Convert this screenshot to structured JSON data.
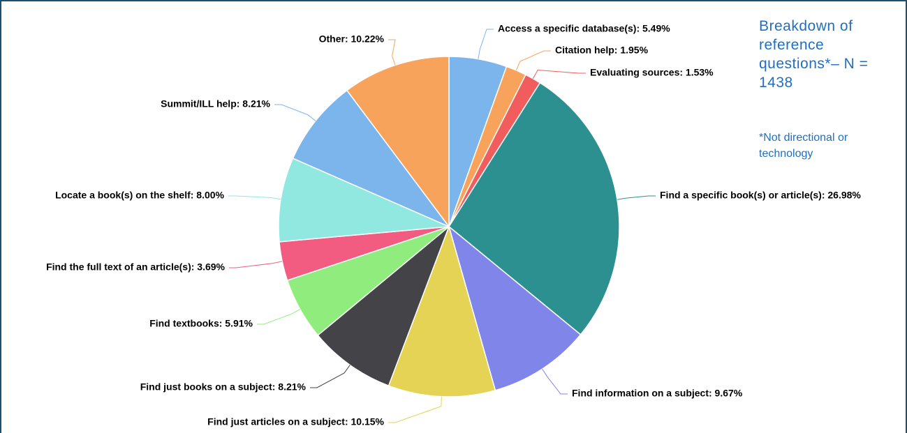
{
  "chart_data": {
    "type": "pie",
    "title": "Breakdown of reference questions*– N = 1438",
    "subtitle": "*Not directional or technology",
    "values": [
      5.49,
      1.95,
      1.53,
      26.98,
      9.67,
      10.15,
      8.21,
      5.91,
      3.69,
      8.0,
      8.21,
      10.22
    ],
    "value_labels": [
      "Access a specific database(s): 5.49%",
      "Citation help: 1.95%",
      "Evaluating sources: 1.53%",
      "Find a specific book(s) or article(s): 26.98%",
      "Find information on a subject: 9.67%",
      "Find just articles on a subject: 10.15%",
      "Find just books on a subject: 8.21%",
      "Find textbooks: 5.91%",
      "Find the full text of an article(s): 3.69%",
      "Locate a book(s) on the shelf: 8.00%",
      "Summit/ILL help: 8.21%",
      "Other: 10.22%"
    ],
    "colors": [
      "#7cb5ec",
      "#f7a35c",
      "#f15c5c",
      "#2b908f",
      "#8085e9",
      "#e4d354",
      "#434348",
      "#90ed7d",
      "#f15c80",
      "#91e8e1",
      "#7cb5ec",
      "#f7a35c"
    ]
  }
}
